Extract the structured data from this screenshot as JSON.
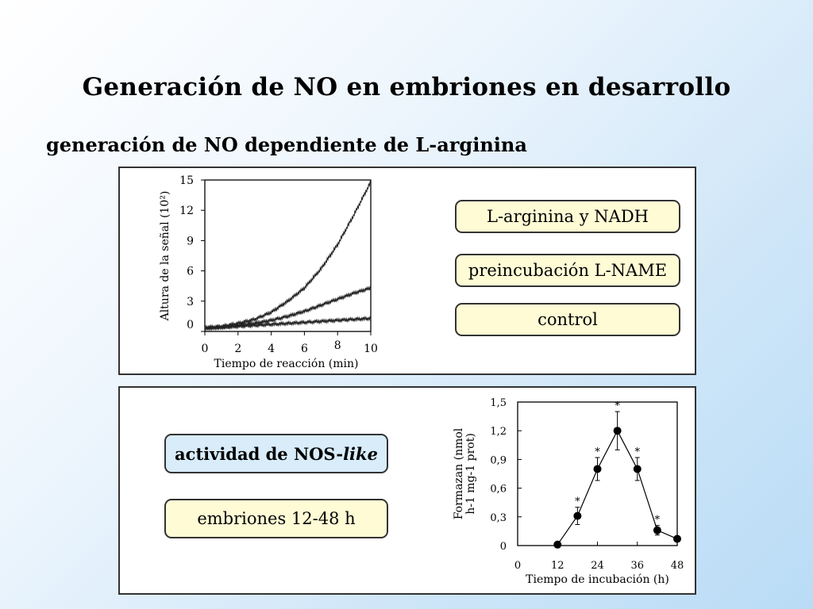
{
  "slide": {
    "title": "Generación de NO en embriones en desarrollo",
    "subtitle": "generación de NO dependiente de L-arginina"
  },
  "top_panel": {
    "labels": [
      "L-arginina y NADH",
      "preincubación L-NAME",
      "control"
    ]
  },
  "bottom_panel": {
    "label_main_prefix": "actividad de NOS-",
    "label_main_italic": "like",
    "label_secondary": "embriones 12-48 h"
  },
  "chart_data": [
    {
      "type": "line",
      "ylabel": "Altura de la señal (10²)",
      "xlabel": "Tiempo de reacción (min)",
      "xlim": [
        0,
        10
      ],
      "ylim": [
        0,
        15
      ],
      "xticks": [
        "0",
        "2",
        "4",
        "6",
        "8",
        "10"
      ],
      "yticks": [
        "0",
        "3",
        "6",
        "9",
        "12",
        "15"
      ],
      "series": [
        {
          "x": [
            0,
            1,
            2,
            3,
            4,
            5,
            6,
            7,
            8,
            9,
            10
          ],
          "values": [
            0.4,
            0.5,
            0.8,
            1.2,
            1.9,
            3.0,
            4.3,
            6.2,
            8.6,
            11.6,
            14.8
          ]
        },
        {
          "x": [
            0,
            1,
            2,
            3,
            4,
            5,
            6,
            7,
            8,
            9,
            10
          ],
          "values": [
            0.3,
            0.4,
            0.6,
            0.8,
            1.1,
            1.5,
            2.0,
            2.6,
            3.2,
            3.8,
            4.3
          ]
        },
        {
          "x": [
            0,
            1,
            2,
            3,
            4,
            5,
            6,
            7,
            8,
            9,
            10
          ],
          "values": [
            0.3,
            0.4,
            0.5,
            0.6,
            0.7,
            0.8,
            0.9,
            1.0,
            1.1,
            1.2,
            1.3
          ]
        }
      ]
    },
    {
      "type": "line",
      "ylabel_lines": [
        "Formazan (nmol",
        "h-1 mg-1 prot)"
      ],
      "xlabel": "Tiempo de incubación (h)",
      "xlim": [
        0,
        48
      ],
      "ylim": [
        0,
        1.5
      ],
      "xticks": [
        "0",
        "12",
        "24",
        "36",
        "48"
      ],
      "yticks": [
        "0",
        "0,3",
        "0,6",
        "0,9",
        "1,2",
        "1,5"
      ],
      "series": [
        {
          "x": [
            12,
            18,
            24,
            30,
            36,
            42,
            48
          ],
          "values": [
            0.01,
            0.31,
            0.8,
            1.2,
            0.8,
            0.16,
            0.07
          ],
          "errors": [
            0,
            0.09,
            0.12,
            0.2,
            0.12,
            0.05,
            0
          ],
          "significant": [
            false,
            true,
            true,
            true,
            true,
            true,
            false
          ]
        }
      ],
      "annotation_marker": "*"
    }
  ]
}
